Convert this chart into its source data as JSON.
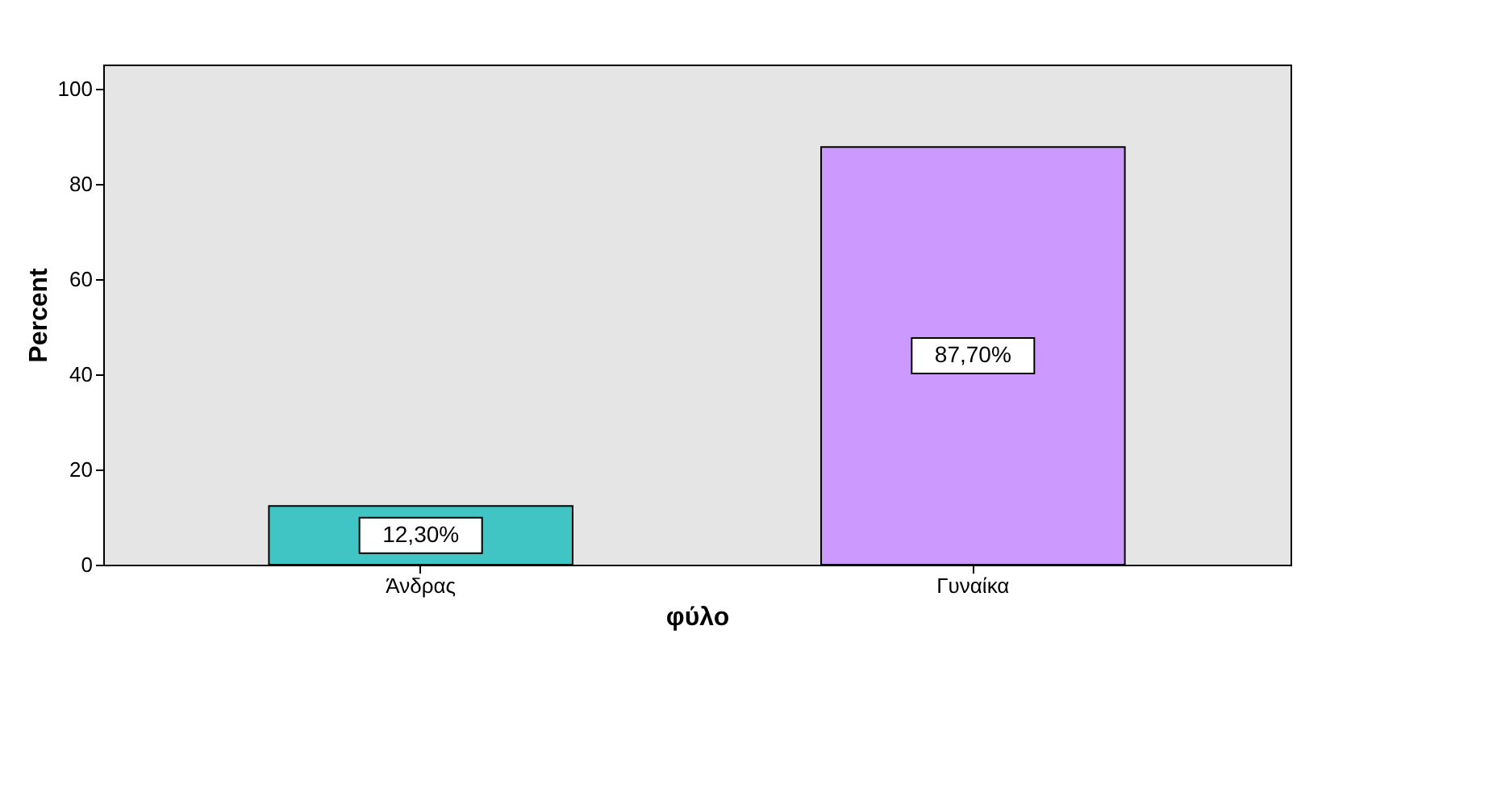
{
  "chart_data": {
    "type": "bar",
    "xlabel": "φύλο",
    "ylabel": "Percent",
    "categories": [
      "Άνδρας",
      "Γυναίκα"
    ],
    "values": [
      12.3,
      87.7
    ],
    "colors": [
      "#40c4c4",
      "#cc99ff"
    ],
    "value_labels": [
      "12,30%",
      "87,70%"
    ],
    "ylim": [
      0,
      105
    ],
    "yticks": [
      0,
      20,
      40,
      60,
      80,
      100
    ],
    "grid": false
  }
}
